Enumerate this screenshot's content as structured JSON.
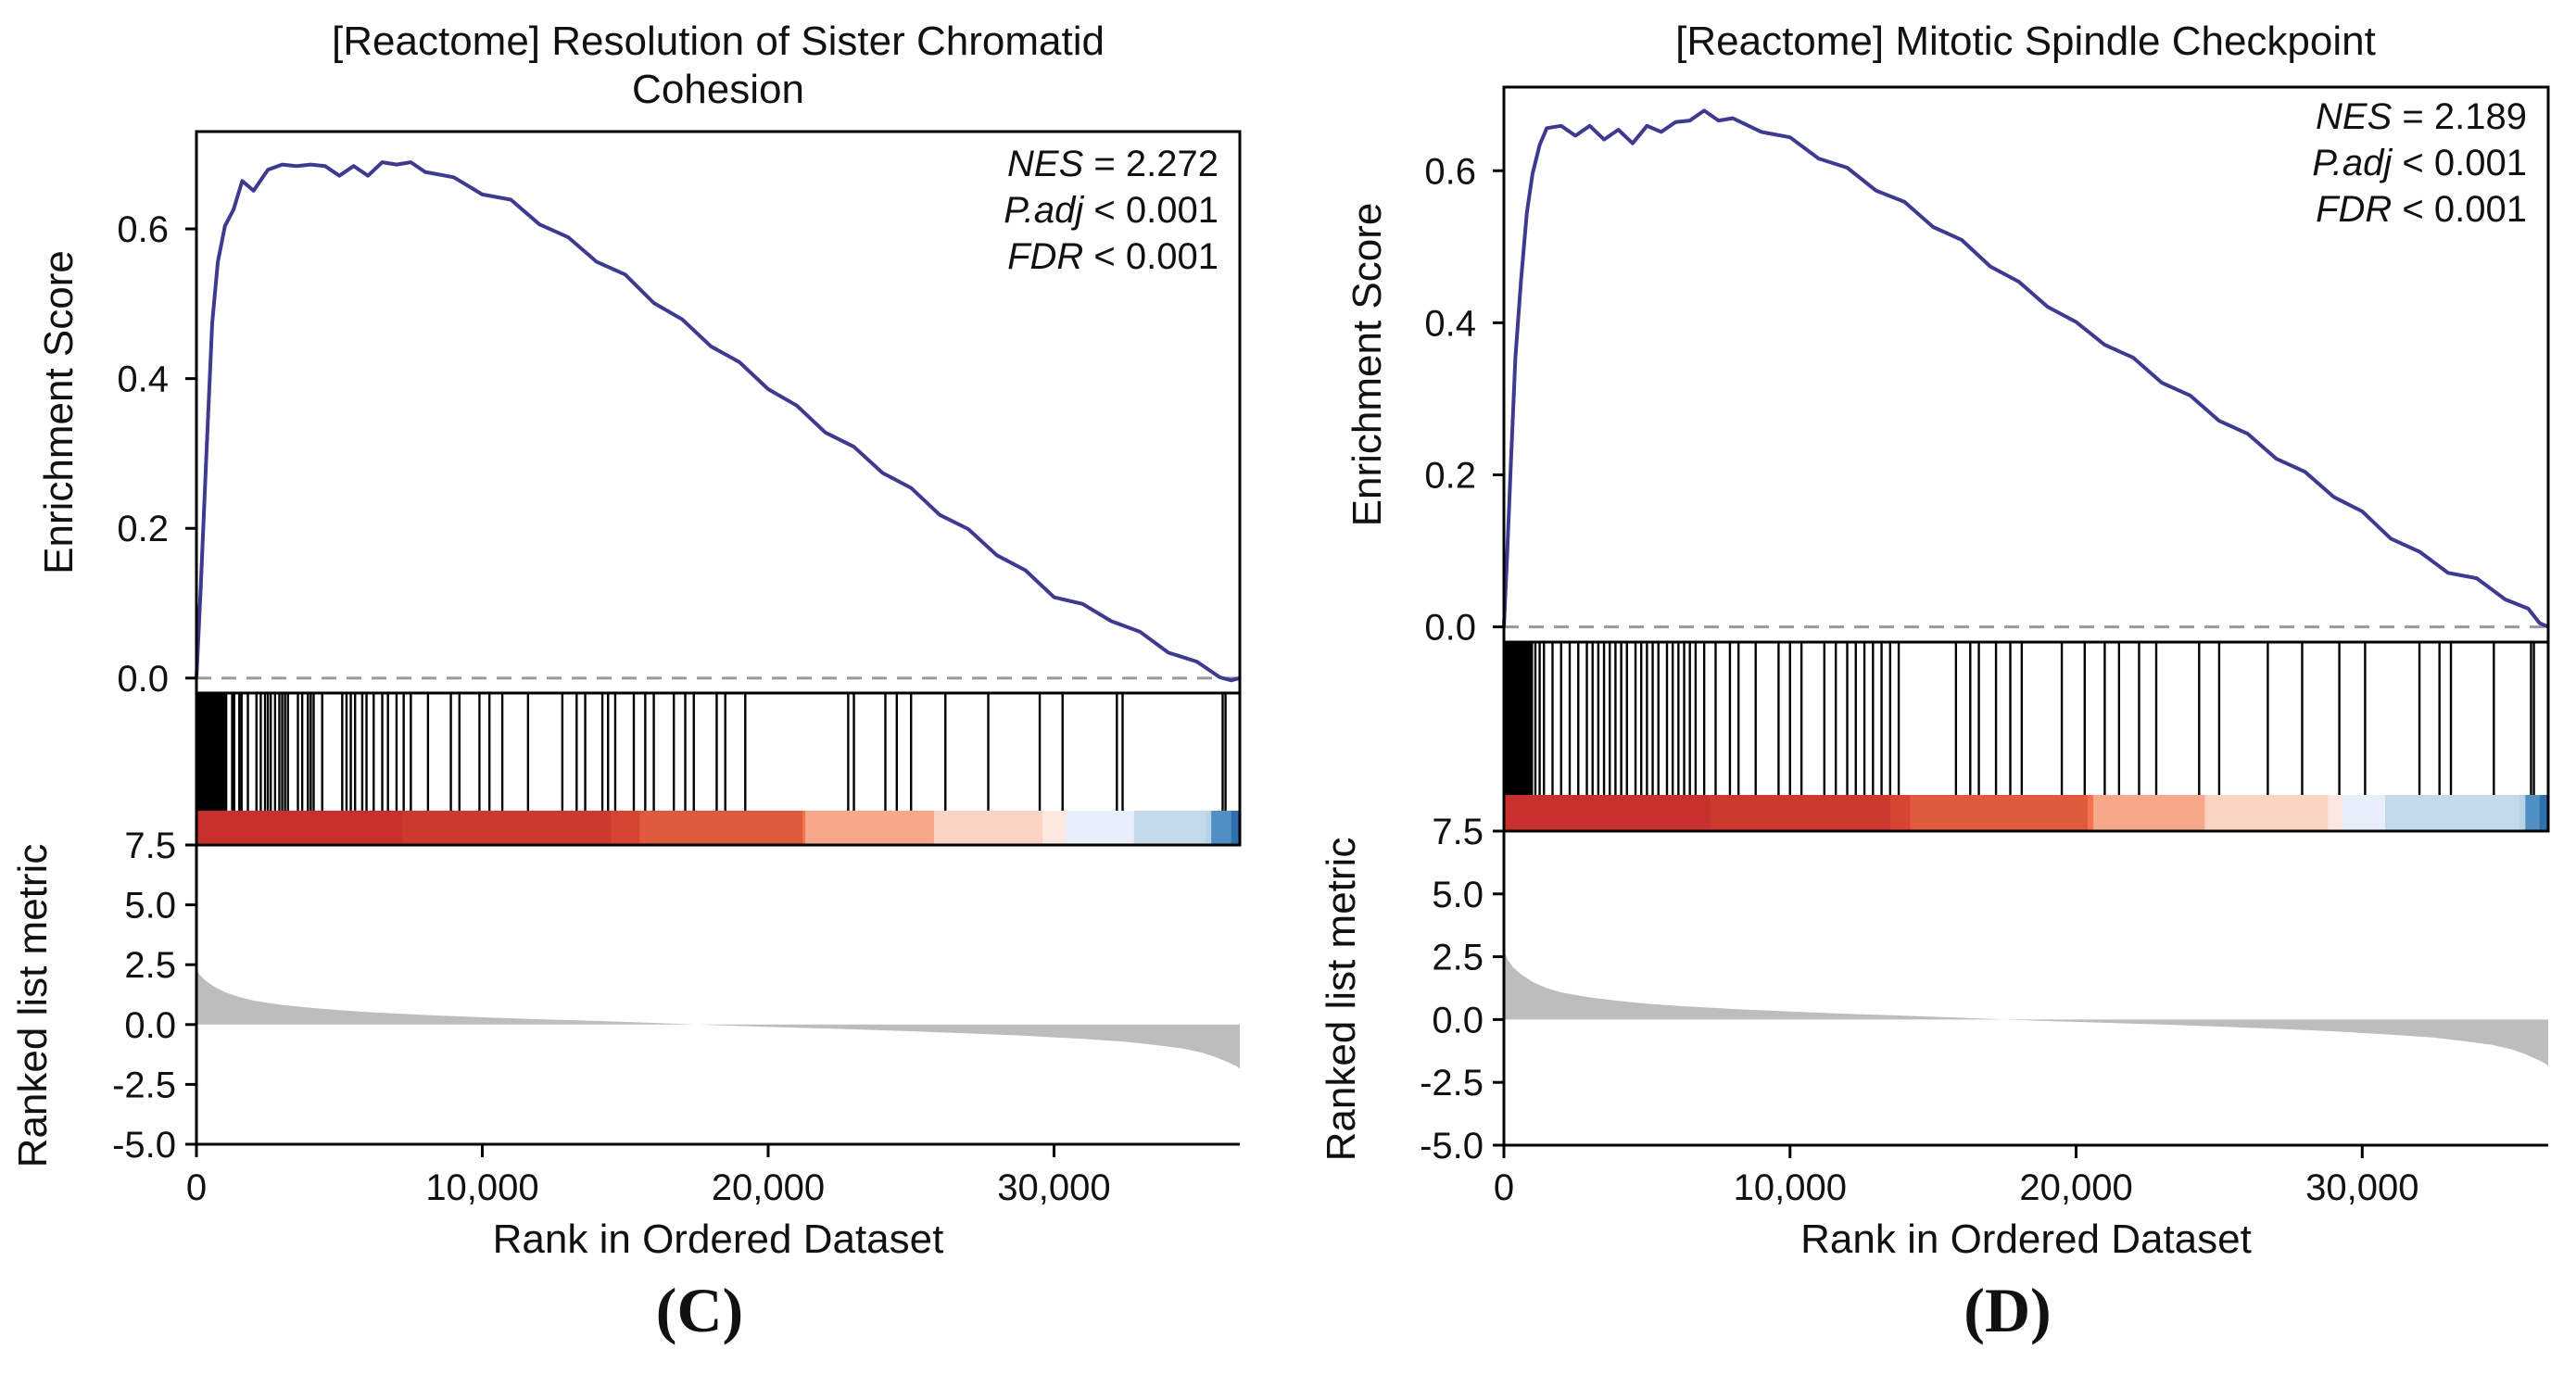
{
  "chart_data": [
    {
      "panel_label": "(C)",
      "type": "line",
      "title_lines": [
        "[Reactome] Resolution of Sister Chromatid",
        "Cohesion"
      ],
      "stats": [
        {
          "label": "NES",
          "op": " = ",
          "value": "2.272"
        },
        {
          "label": "P.adj",
          "op": " < ",
          "value": "0.001"
        },
        {
          "label": "FDR",
          "op": " < ",
          "value": "0.001"
        }
      ],
      "ylabel_es": "Enrichment Score",
      "ylabel_metric": "Ranked list metric",
      "xlabel": "Rank in Ordered Dataset",
      "xlim": [
        0,
        36500
      ],
      "ylim_es": [
        -0.02,
        0.73
      ],
      "yticks_es": [
        "0.0",
        "0.2",
        "0.4",
        "0.6"
      ],
      "ylim_metric": [
        -5.0,
        7.5
      ],
      "yticks_metric": [
        "7.5",
        "5.0",
        "2.5",
        "0.0",
        "-2.5",
        "-5.0"
      ],
      "xticks": [
        0,
        10000,
        20000,
        30000
      ],
      "xtick_labels": [
        "0",
        "10,000",
        "20,000",
        "30,000"
      ],
      "es_curve": {
        "x": [
          0,
          150,
          350,
          550,
          750,
          1000,
          1300,
          1600,
          2000,
          2500,
          3000,
          3500,
          4000,
          4500,
          5000,
          5500,
          6000,
          6500,
          7000,
          7500,
          8000,
          9000,
          10000,
          11000,
          12000,
          13000,
          14000,
          15000,
          16000,
          17000,
          18000,
          19000,
          20000,
          21000,
          22000,
          23000,
          24000,
          25000,
          26000,
          27000,
          28000,
          29000,
          30000,
          31000,
          32000,
          33000,
          34000,
          35000,
          35800,
          36200,
          36500
        ],
        "y": [
          0.0,
          0.12,
          0.3,
          0.47,
          0.56,
          0.6,
          0.63,
          0.66,
          0.655,
          0.675,
          0.69,
          0.68,
          0.69,
          0.68,
          0.675,
          0.68,
          0.675,
          0.685,
          0.69,
          0.685,
          0.68,
          0.665,
          0.65,
          0.635,
          0.61,
          0.585,
          0.56,
          0.535,
          0.505,
          0.475,
          0.447,
          0.418,
          0.39,
          0.36,
          0.332,
          0.305,
          0.278,
          0.25,
          0.222,
          0.195,
          0.168,
          0.14,
          0.112,
          0.095,
          0.08,
          0.058,
          0.038,
          0.018,
          0.005,
          -0.003,
          0.0
        ]
      },
      "hit_ranks": [
        30,
        80,
        130,
        180,
        230,
        280,
        330,
        380,
        430,
        480,
        530,
        580,
        630,
        680,
        730,
        780,
        830,
        880,
        930,
        980,
        1040,
        1250,
        1320,
        1500,
        1580,
        1800,
        2100,
        2250,
        2400,
        2500,
        2600,
        2750,
        2900,
        3000,
        3100,
        3200,
        3550,
        3700,
        3900,
        4000,
        4100,
        4400,
        5100,
        5250,
        5400,
        5550,
        5800,
        5950,
        6200,
        6500,
        6700,
        7000,
        7250,
        7500,
        8100,
        8900,
        9200,
        9900,
        10250,
        10700,
        11600,
        12800,
        13300,
        13600,
        14200,
        14400,
        14650,
        15300,
        15700,
        16000,
        16700,
        17100,
        17400,
        18200,
        18500,
        19200,
        22800,
        23000,
        24100,
        24500,
        25000,
        26200,
        27700,
        29500,
        30300,
        32200,
        32400,
        35900,
        36000
      ],
      "metric_curve": {
        "x": [
          0,
          100,
          300,
          600,
          1000,
          1500,
          2000,
          3000,
          4000,
          5000,
          6000,
          8000,
          10000,
          12000,
          14000,
          16000,
          17500,
          19000,
          21000,
          23000,
          25000,
          27000,
          29000,
          31000,
          32500,
          33500,
          34500,
          35200,
          35700,
          36100,
          36400,
          36500
        ],
        "y": [
          2.3,
          2.1,
          1.85,
          1.6,
          1.35,
          1.15,
          1.0,
          0.82,
          0.7,
          0.6,
          0.52,
          0.4,
          0.3,
          0.22,
          0.15,
          0.07,
          0.0,
          -0.06,
          -0.13,
          -0.2,
          -0.28,
          -0.37,
          -0.47,
          -0.6,
          -0.72,
          -0.85,
          -1.0,
          -1.18,
          -1.38,
          -1.58,
          -1.75,
          -1.85
        ]
      },
      "heatmap_colors": [
        "#c8302e",
        "#cb3a2f",
        "#d84434",
        "#e05a3e",
        "#f4734e",
        "#f7a78a",
        "#fbd3c2",
        "#fde8df",
        "#e8effa",
        "#c4d9ea",
        "#b9d3e6",
        "#4f8fc4",
        "#2f71ae"
      ],
      "heatmap_breaks": [
        0,
        7200,
        14500,
        15500,
        21200,
        21300,
        25800,
        29600,
        30400,
        32800,
        35300,
        35500,
        36200,
        36500
      ]
    },
    {
      "panel_label": "(D)",
      "type": "line",
      "title_lines": [
        "[Reactome] Mitotic Spindle Checkpoint"
      ],
      "stats": [
        {
          "label": "NES",
          "op": " = ",
          "value": "2.189"
        },
        {
          "label": "P.adj",
          "op": " < ",
          "value": "0.001"
        },
        {
          "label": "FDR",
          "op": " < ",
          "value": "0.001"
        }
      ],
      "ylabel_es": "Enrichment Score",
      "ylabel_metric": "Ranked list metric",
      "xlabel": "Rank in Ordered Dataset",
      "xlim": [
        0,
        36500
      ],
      "ylim_es": [
        -0.02,
        0.71
      ],
      "yticks_es": [
        "0.0",
        "0.2",
        "0.4",
        "0.6"
      ],
      "ylim_metric": [
        -5.0,
        7.5
      ],
      "yticks_metric": [
        "7.5",
        "5.0",
        "2.5",
        "0.0",
        "-2.5",
        "-5.0"
      ],
      "xticks": [
        0,
        10000,
        20000,
        30000
      ],
      "xtick_labels": [
        "0",
        "10,000",
        "20,000",
        "30,000"
      ],
      "es_curve": {
        "x": [
          0,
          120,
          250,
          400,
          600,
          800,
          1000,
          1250,
          1500,
          2000,
          2500,
          3000,
          3500,
          4000,
          4500,
          5000,
          5500,
          6000,
          6500,
          7000,
          7500,
          8000,
          9000,
          10000,
          11000,
          12000,
          13000,
          14000,
          15000,
          16000,
          17000,
          18000,
          19000,
          20000,
          21000,
          22000,
          23000,
          24000,
          25000,
          26000,
          27000,
          28000,
          29000,
          30000,
          31000,
          32000,
          33000,
          34000,
          35000,
          35800,
          36200,
          36500
        ],
        "y": [
          0.0,
          0.1,
          0.22,
          0.35,
          0.46,
          0.54,
          0.6,
          0.63,
          0.66,
          0.655,
          0.65,
          0.655,
          0.645,
          0.65,
          0.64,
          0.655,
          0.655,
          0.66,
          0.67,
          0.675,
          0.67,
          0.665,
          0.655,
          0.64,
          0.62,
          0.6,
          0.578,
          0.555,
          0.53,
          0.505,
          0.478,
          0.45,
          0.425,
          0.397,
          0.375,
          0.35,
          0.325,
          0.3,
          0.275,
          0.25,
          0.225,
          0.2,
          0.175,
          0.148,
          0.12,
          0.095,
          0.075,
          0.06,
          0.04,
          0.02,
          0.005,
          0.0
        ]
      },
      "hit_ranks": [
        30,
        80,
        130,
        180,
        230,
        280,
        330,
        380,
        430,
        480,
        530,
        580,
        630,
        680,
        730,
        780,
        830,
        880,
        930,
        980,
        1100,
        1250,
        1400,
        1700,
        2000,
        2300,
        2600,
        2900,
        3100,
        3300,
        3500,
        3700,
        3900,
        4100,
        4300,
        4600,
        4800,
        5000,
        5200,
        5400,
        5700,
        5900,
        6100,
        6300,
        6500,
        6700,
        7000,
        7400,
        7900,
        8200,
        8800,
        9600,
        10000,
        10400,
        11200,
        11600,
        12000,
        12300,
        12600,
        12900,
        13200,
        13500,
        13800,
        15800,
        16300,
        16600,
        17200,
        17700,
        18100,
        19500,
        20300,
        21000,
        21500,
        22200,
        22800,
        24300,
        25000,
        26700,
        27900,
        29200,
        30100,
        32000,
        32700,
        33100,
        34600,
        35900,
        36000
      ],
      "metric_curve": {
        "x": [
          0,
          100,
          300,
          600,
          1000,
          1500,
          2000,
          3000,
          4000,
          5000,
          6000,
          8000,
          10000,
          12000,
          14000,
          16000,
          17500,
          19000,
          21000,
          23000,
          25000,
          27000,
          29000,
          31000,
          32500,
          33500,
          34500,
          35200,
          35700,
          36100,
          36400,
          36500
        ],
        "y": [
          2.8,
          2.45,
          2.1,
          1.8,
          1.5,
          1.25,
          1.08,
          0.88,
          0.74,
          0.63,
          0.55,
          0.42,
          0.32,
          0.23,
          0.15,
          0.07,
          0.0,
          -0.06,
          -0.13,
          -0.2,
          -0.28,
          -0.37,
          -0.47,
          -0.6,
          -0.72,
          -0.85,
          -1.0,
          -1.18,
          -1.38,
          -1.58,
          -1.75,
          -1.85
        ]
      },
      "heatmap_colors": [
        "#c8302e",
        "#cb3a2f",
        "#d84434",
        "#e05a3e",
        "#f4734e",
        "#f7a78a",
        "#fbd3c2",
        "#fde8df",
        "#e8effa",
        "#c4d9ea",
        "#b9d3e6",
        "#4f8fc4",
        "#2f71ae"
      ],
      "heatmap_breaks": [
        0,
        7200,
        13500,
        14200,
        20400,
        20600,
        24500,
        28800,
        29300,
        30800,
        35500,
        35700,
        36200,
        36500
      ]
    }
  ]
}
